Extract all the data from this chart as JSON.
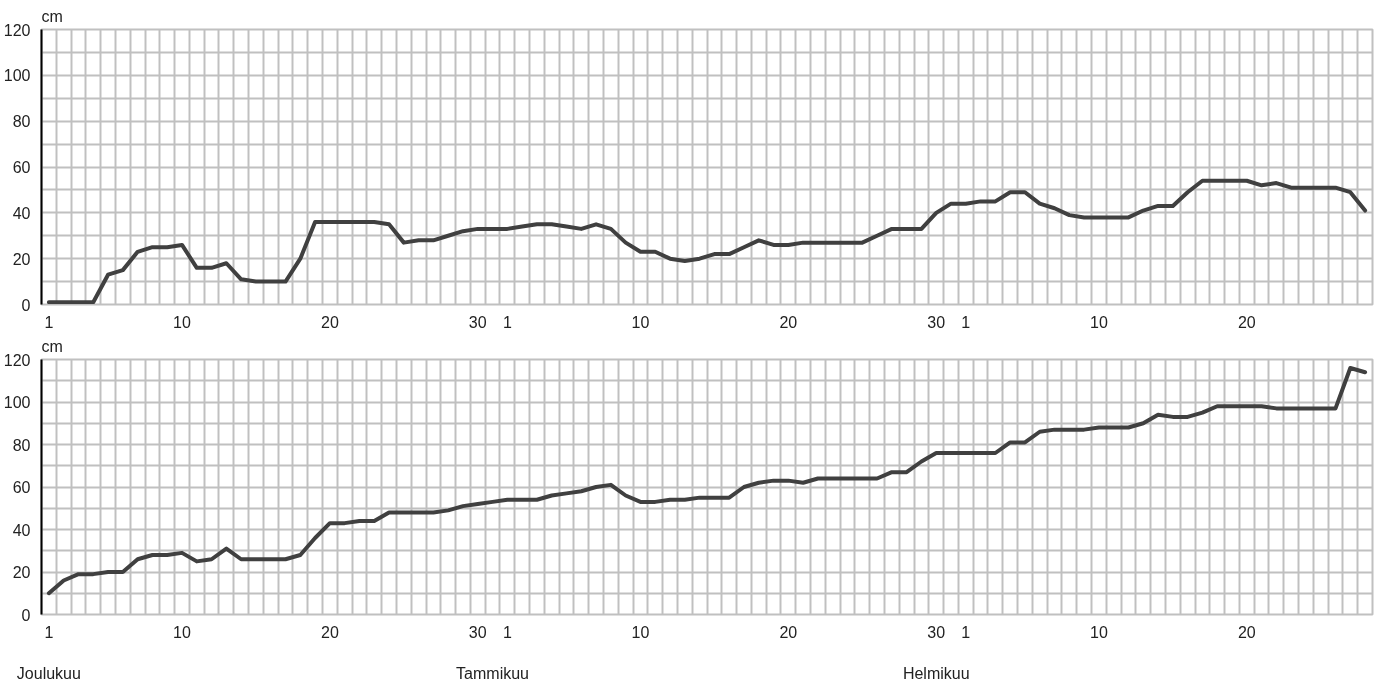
{
  "chart_data": [
    {
      "type": "line",
      "ylabel": "cm",
      "categories": [
        "1",
        null,
        null,
        null,
        null,
        null,
        null,
        null,
        null,
        "10",
        null,
        null,
        null,
        null,
        null,
        null,
        null,
        null,
        null,
        "20",
        null,
        null,
        null,
        null,
        null,
        null,
        null,
        null,
        null,
        "30",
        null,
        "1",
        null,
        null,
        null,
        null,
        null,
        null,
        null,
        null,
        "10",
        null,
        null,
        null,
        null,
        null,
        null,
        null,
        null,
        null,
        "20",
        null,
        null,
        null,
        null,
        null,
        null,
        null,
        null,
        null,
        "30",
        null,
        "1",
        null,
        null,
        null,
        null,
        null,
        null,
        null,
        null,
        "10",
        null,
        null,
        null,
        null,
        null,
        null,
        null,
        null,
        null,
        "20",
        null,
        null,
        null,
        null,
        null,
        null,
        null,
        null
      ],
      "series": [
        {
          "color": "#404040",
          "values": [
            1,
            1,
            1,
            1,
            13,
            15,
            23,
            25,
            25,
            26,
            16,
            16,
            18,
            11,
            10,
            10,
            10,
            20,
            36,
            36,
            36,
            36,
            36,
            35,
            27,
            28,
            28,
            30,
            32,
            33,
            33,
            33,
            34,
            35,
            35,
            34,
            33,
            35,
            33,
            27,
            23,
            23,
            20,
            19,
            20,
            22,
            22,
            25,
            28,
            26,
            26,
            27,
            27,
            27,
            27,
            27,
            30,
            33,
            33,
            33,
            40,
            44,
            44,
            45,
            45,
            49,
            49,
            44,
            42,
            39,
            38,
            38,
            38,
            38,
            41,
            43,
            43,
            49,
            54,
            54,
            54,
            54,
            52,
            53,
            51,
            51,
            51,
            51,
            49,
            41
          ]
        }
      ],
      "ylim": [
        0,
        120
      ],
      "yticks": [
        0,
        {
          "value": 10,
          "label": null
        },
        20,
        {
          "value": 30,
          "label": null
        },
        40,
        {
          "value": 50,
          "label": null
        },
        60,
        {
          "value": 70,
          "label": null
        },
        80,
        {
          "value": 90,
          "label": null
        },
        100,
        {
          "value": 110,
          "label": null
        },
        120
      ],
      "grid": true
    },
    {
      "type": "line",
      "ylabel": "cm",
      "categories": [
        "1",
        null,
        null,
        null,
        null,
        null,
        null,
        null,
        null,
        "10",
        null,
        null,
        null,
        null,
        null,
        null,
        null,
        null,
        null,
        "20",
        null,
        null,
        null,
        null,
        null,
        null,
        null,
        null,
        null,
        "30",
        null,
        "1",
        null,
        null,
        null,
        null,
        null,
        null,
        null,
        null,
        "10",
        null,
        null,
        null,
        null,
        null,
        null,
        null,
        null,
        null,
        "20",
        null,
        null,
        null,
        null,
        null,
        null,
        null,
        null,
        null,
        "30",
        null,
        "1",
        null,
        null,
        null,
        null,
        null,
        null,
        null,
        null,
        "10",
        null,
        null,
        null,
        null,
        null,
        null,
        null,
        null,
        null,
        "20",
        null,
        null,
        null,
        null,
        null,
        null,
        null,
        null
      ],
      "series": [
        {
          "color": "#404040",
          "values": [
            10,
            16,
            19,
            19,
            20,
            20,
            26,
            28,
            28,
            29,
            25,
            26,
            31,
            26,
            26,
            26,
            26,
            28,
            36,
            43,
            43,
            44,
            44,
            48,
            48,
            48,
            48,
            49,
            51,
            52,
            53,
            54,
            54,
            54,
            56,
            57,
            58,
            60,
            61,
            56,
            53,
            53,
            54,
            54,
            55,
            55,
            55,
            60,
            62,
            63,
            63,
            62,
            64,
            64,
            64,
            64,
            64,
            67,
            67,
            72,
            76,
            76,
            76,
            76,
            76,
            81,
            81,
            86,
            87,
            87,
            87,
            88,
            88,
            88,
            90,
            94,
            93,
            93,
            95,
            98,
            98,
            98,
            98,
            97,
            97,
            97,
            97,
            97,
            116,
            114
          ]
        }
      ],
      "ylim": [
        0,
        120
      ],
      "yticks": [
        0,
        {
          "value": 10,
          "label": null
        },
        20,
        {
          "value": 30,
          "label": null
        },
        40,
        {
          "value": 50,
          "label": null
        },
        60,
        {
          "value": 70,
          "label": null
        },
        80,
        {
          "value": 90,
          "label": null
        },
        100,
        {
          "value": 110,
          "label": null
        },
        120
      ],
      "grid": true,
      "annotations": [
        "Joulukuu",
        "Tammikuu",
        "Helmikuu"
      ]
    }
  ]
}
